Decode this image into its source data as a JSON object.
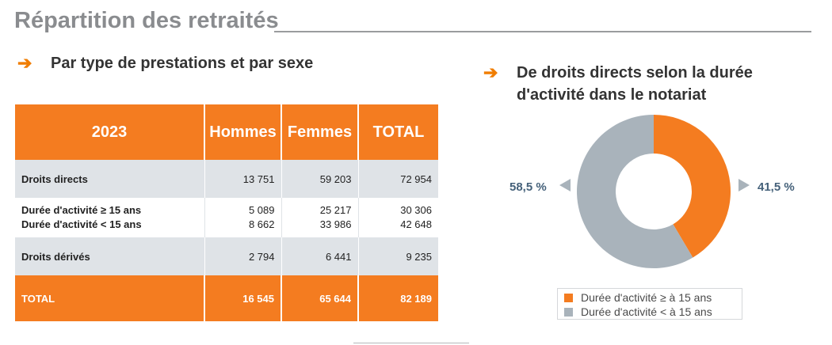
{
  "title": "Répartition des retraités",
  "left_section": {
    "heading": "Par type de prestations et par sexe",
    "table": {
      "headers": [
        "2023",
        "Hommes",
        "Femmes",
        "TOTAL"
      ],
      "rows": [
        {
          "label": "Droits directs",
          "values": [
            "13 751",
            "59 203",
            "72 954"
          ]
        },
        {
          "label": "Durée d'activité ≥ 15 ans",
          "values": [
            "5 089",
            "25 217",
            "30 306"
          ]
        },
        {
          "label": "Durée d'activité < 15 ans",
          "values": [
            "8 662",
            "33 986",
            "42 648"
          ]
        },
        {
          "label": "Droits dérivés",
          "values": [
            "2 794",
            "6 441",
            "9 235"
          ]
        },
        {
          "label": "TOTAL",
          "values": [
            "16 545",
            "65 644",
            "82 189"
          ]
        }
      ]
    }
  },
  "right_section": {
    "heading_line1": "De droits directs selon la durée",
    "heading_line2": "d'activité dans le notariat",
    "chart_data": {
      "type": "pie",
      "labels": [
        "Durée d'activité ≥ à 15 ans",
        "Durée d'activité < à 15 ans"
      ],
      "values": [
        41.5,
        58.5
      ],
      "value_labels": [
        "41,5 %",
        "58,5 %"
      ],
      "colors": [
        "#f47c20",
        "#a9b3bb"
      ],
      "legend_position": "bottom"
    }
  },
  "icons": {
    "section_arrow": "arrow-right-icon"
  }
}
